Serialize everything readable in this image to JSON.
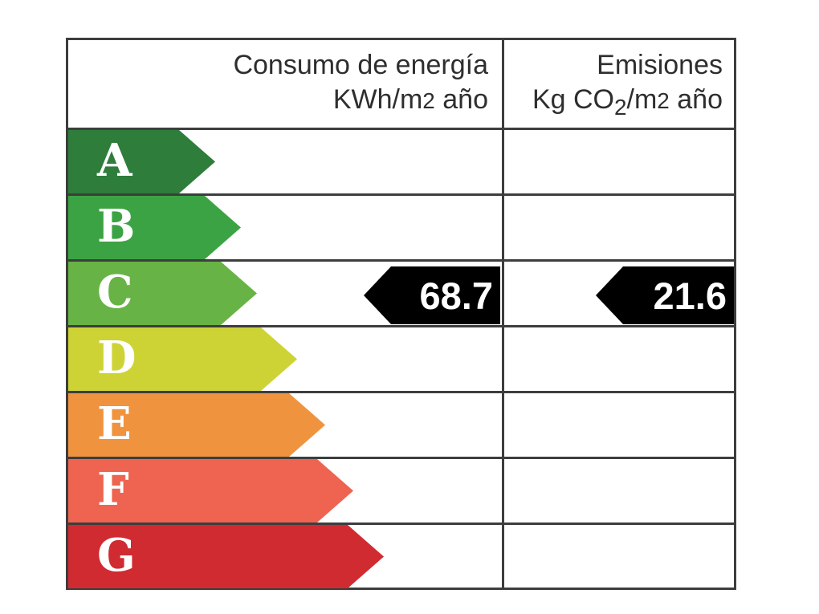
{
  "certificate": {
    "columns": [
      {
        "title": "Consumo de energía",
        "unit": {
          "pre": "KWh/m",
          "exp": "2",
          "post": " año"
        }
      },
      {
        "title": "Emisiones",
        "unit": {
          "pre": "Kg CO",
          "sub": "2",
          "mid": "/m",
          "exp": "2",
          "post": " año"
        }
      }
    ],
    "ratings": [
      {
        "letter": "A",
        "color": "#2e7d3b",
        "arrow_width": 183
      },
      {
        "letter": "B",
        "color": "#3ba343",
        "arrow_width": 215
      },
      {
        "letter": "C",
        "color": "#68b345",
        "arrow_width": 235
      },
      {
        "letter": "D",
        "color": "#cdd335",
        "arrow_width": 285
      },
      {
        "letter": "E",
        "color": "#f0933f",
        "arrow_width": 320
      },
      {
        "letter": "F",
        "color": "#ee6450",
        "arrow_width": 355
      },
      {
        "letter": "G",
        "color": "#cf2b31",
        "arrow_width": 393
      }
    ],
    "values": {
      "consumption": "68.7",
      "emissions": "21.6",
      "value_arrow_color": "#000000"
    }
  },
  "chart_data": {
    "type": "table",
    "columns": [
      "Consumo de energía KWh/m2 año",
      "Emisiones Kg CO2/m2 año"
    ],
    "rating_scale": [
      "A",
      "B",
      "C",
      "D",
      "E",
      "F",
      "G"
    ],
    "rating_colors": [
      "#2e7d3b",
      "#3ba343",
      "#68b345",
      "#cdd335",
      "#f0933f",
      "#ee6450",
      "#cf2b31"
    ],
    "current_rating": "C",
    "consumption_kwh_m2_year": 68.7,
    "emissions_kg_co2_m2_year": 21.6,
    "legend_position": "none",
    "grid": true
  }
}
